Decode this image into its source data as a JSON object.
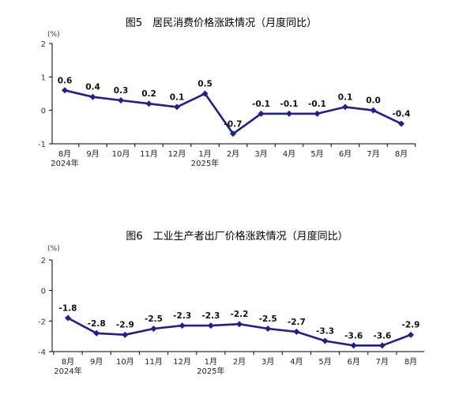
{
  "chart_data": [
    {
      "type": "line",
      "title": "图5　居民消费价格涨跌情况（月度同比）",
      "unit": "(%)",
      "categories": [
        "8月",
        "9月",
        "10月",
        "11月",
        "12月",
        "1月",
        "2月",
        "3月",
        "4月",
        "5月",
        "6月",
        "7月",
        "8月"
      ],
      "year_labels": [
        "2024年",
        "",
        "",
        "",
        "",
        "2025年",
        "",
        "",
        "",
        "",
        "",
        "",
        ""
      ],
      "values": [
        0.6,
        0.4,
        0.3,
        0.2,
        0.1,
        0.5,
        -0.7,
        -0.1,
        -0.1,
        -0.1,
        0.1,
        0.0,
        -0.4
      ],
      "data_labels": [
        "0.6",
        "0.4",
        "0.3",
        "0.2",
        "0.1",
        "0.5",
        "-0.7",
        "-0.1",
        "-0.1",
        "-0.1",
        "0.1",
        "0.0",
        "-0.4"
      ],
      "yticks": [
        "2",
        "1",
        "0",
        "-1"
      ],
      "ylim": [
        -1,
        2
      ],
      "color": "#1f1f8f",
      "grid": false
    },
    {
      "type": "line",
      "title": "图6　工业生产者出厂价格涨跌情况（月度同比）",
      "unit": "(%)",
      "categories": [
        "8月",
        "9月",
        "10月",
        "11月",
        "12月",
        "1月",
        "2月",
        "3月",
        "4月",
        "5月",
        "6月",
        "7月",
        "8月"
      ],
      "year_labels": [
        "2024年",
        "",
        "",
        "",
        "",
        "2025年",
        "",
        "",
        "",
        "",
        "",
        "",
        ""
      ],
      "values": [
        -1.8,
        -2.8,
        -2.9,
        -2.5,
        -2.3,
        -2.3,
        -2.2,
        -2.5,
        -2.7,
        -3.3,
        -3.6,
        -3.6,
        -2.9
      ],
      "data_labels": [
        "-1.8",
        "-2.8",
        "-2.9",
        "-2.5",
        "-2.3",
        "-2.3",
        "-2.2",
        "-2.5",
        "-2.7",
        "-3.3",
        "-3.6",
        "-3.6",
        "-2.9"
      ],
      "yticks": [
        "2",
        "0",
        "-2",
        "-4"
      ],
      "ylim": [
        -4,
        2
      ],
      "color": "#1f1f8f",
      "grid": false
    }
  ]
}
